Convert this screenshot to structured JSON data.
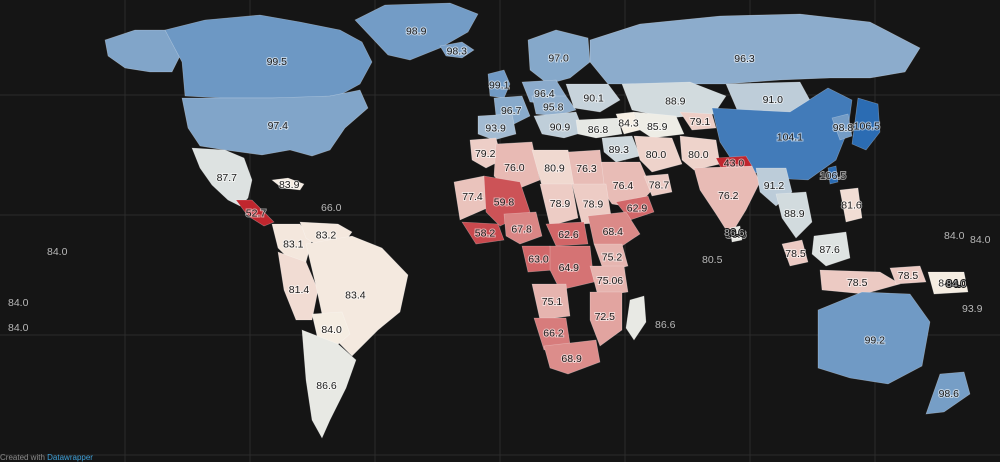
{
  "credit": {
    "prefix": "Created with",
    "link": "Datawrapper"
  },
  "colors": {
    "background": "#151515",
    "scale_low": "#c0262e",
    "scale_mid": "#f7f3e8",
    "scale_high": "#2b6cb3"
  },
  "chart_data": {
    "type": "choropleth",
    "title": "",
    "scale": {
      "min": 52.7,
      "max": 106.5
    },
    "regions": [
      {
        "id": "greenland",
        "value": 98.9,
        "label": "98.9"
      },
      {
        "id": "canada",
        "value": 99.5,
        "label": "99.5"
      },
      {
        "id": "usa",
        "value": 97.4,
        "label": "97.4"
      },
      {
        "id": "alaska",
        "value": 97.4,
        "label": ""
      },
      {
        "id": "mexico",
        "value": 87.7,
        "label": "87.7"
      },
      {
        "id": "central-america",
        "value": 52.7,
        "label": "52.7"
      },
      {
        "id": "cuba",
        "value": 83.9,
        "label": "83.9"
      },
      {
        "id": "colombia",
        "value": 83.1,
        "label": "83.1"
      },
      {
        "id": "venezuela",
        "value": 83.2,
        "label": "83.2"
      },
      {
        "id": "peru",
        "value": 81.4,
        "label": "81.4"
      },
      {
        "id": "brazil",
        "value": 83.4,
        "label": "83.4"
      },
      {
        "id": "bolivia",
        "value": 84.0,
        "label": "84.0"
      },
      {
        "id": "argentina",
        "value": 86.6,
        "label": "86.6"
      },
      {
        "id": "iceland",
        "value": 98.3,
        "label": "98.3"
      },
      {
        "id": "uk",
        "value": 99.1,
        "label": "99.1"
      },
      {
        "id": "scandinavia",
        "value": 97.0,
        "label": "97.0"
      },
      {
        "id": "france",
        "value": 96.7,
        "label": "96.7"
      },
      {
        "id": "germany",
        "value": 96.4,
        "label": "96.4"
      },
      {
        "id": "poland",
        "value": 95.8,
        "label": "95.8"
      },
      {
        "id": "ukraine",
        "value": 90.1,
        "label": "90.1"
      },
      {
        "id": "spain",
        "value": 93.9,
        "label": "93.9"
      },
      {
        "id": "balkans",
        "value": 90.9,
        "label": "90.9"
      },
      {
        "id": "turkey",
        "value": 86.8,
        "label": "86.8"
      },
      {
        "id": "russia",
        "value": 96.3,
        "label": "96.3"
      },
      {
        "id": "kazakhstan",
        "value": 88.9,
        "label": "88.9"
      },
      {
        "id": "mongolia",
        "value": 91.0,
        "label": "91.0"
      },
      {
        "id": "central-asia",
        "value": 85.9,
        "label": "85.9"
      },
      {
        "id": "caucasus",
        "value": 84.3,
        "label": "84.3"
      },
      {
        "id": "china",
        "value": 104.1,
        "label": "104.1"
      },
      {
        "id": "korea",
        "value": 98.8,
        "label": "98.8"
      },
      {
        "id": "japan",
        "value": 106.5,
        "label": "106.5"
      },
      {
        "id": "taiwan",
        "value": 106.5,
        "label": "106.5"
      },
      {
        "id": "kyrgyz",
        "value": 79.1,
        "label": "79.1"
      },
      {
        "id": "iraq",
        "value": 89.3,
        "label": "89.3"
      },
      {
        "id": "iran",
        "value": 80.0,
        "label": "80.0"
      },
      {
        "id": "afghanistan",
        "value": 80.0,
        "label": "80.0"
      },
      {
        "id": "nepal",
        "value": 43.0,
        "label": "43.0"
      },
      {
        "id": "india",
        "value": 76.2,
        "label": "76.2"
      },
      {
        "id": "saudi-arabia",
        "value": 76.4,
        "label": "76.4"
      },
      {
        "id": "oman",
        "value": 78.7,
        "label": "78.7"
      },
      {
        "id": "yemen",
        "value": 62.9,
        "label": "62.9"
      },
      {
        "id": "myanmar",
        "value": 91.2,
        "label": "91.2"
      },
      {
        "id": "thailand",
        "value": 88.9,
        "label": "88.9"
      },
      {
        "id": "philippines",
        "value": 81.6,
        "label": "81.6"
      },
      {
        "id": "sri-lanka",
        "value": 86.6,
        "label": "86.6"
      },
      {
        "id": "malaysia",
        "value": 78.5,
        "label": "78.5"
      },
      {
        "id": "borneo",
        "value": 87.6,
        "label": "87.6"
      },
      {
        "id": "indonesia",
        "value": 78.5,
        "label": "78.5"
      },
      {
        "id": "timor",
        "value": 78.5,
        "label": "78.5"
      },
      {
        "id": "png",
        "value": 84.0,
        "label": "84.0"
      },
      {
        "id": "australia",
        "value": 99.2,
        "label": "99.2"
      },
      {
        "id": "new-zealand",
        "value": 98.6,
        "label": "98.6"
      },
      {
        "id": "morocco",
        "value": 79.2,
        "label": "79.2"
      },
      {
        "id": "algeria",
        "value": 76.0,
        "label": "76.0"
      },
      {
        "id": "libya",
        "value": 80.9,
        "label": "80.9"
      },
      {
        "id": "egypt",
        "value": 76.3,
        "label": "76.3"
      },
      {
        "id": "mauritania",
        "value": 77.4,
        "label": "77.4"
      },
      {
        "id": "mali",
        "value": 59.8,
        "label": "59.8"
      },
      {
        "id": "guinea",
        "value": 58.2,
        "label": "58.2"
      },
      {
        "id": "nigeria",
        "value": 67.8,
        "label": "67.8"
      },
      {
        "id": "chad",
        "value": 78.9,
        "label": "78.9"
      },
      {
        "id": "sudan",
        "value": 78.9,
        "label": "78.9"
      },
      {
        "id": "cent-african-rep",
        "value": 62.6,
        "label": "62.6"
      },
      {
        "id": "ethiopia",
        "value": 68.4,
        "label": "68.4"
      },
      {
        "id": "gabon",
        "value": 63.0,
        "label": "63.0"
      },
      {
        "id": "drc",
        "value": 64.9,
        "label": "64.9"
      },
      {
        "id": "kenya",
        "value": 75.2,
        "label": "75.2"
      },
      {
        "id": "tanzania",
        "value": 75.06,
        "label": "75.06"
      },
      {
        "id": "angola",
        "value": 75.1,
        "label": "75.1"
      },
      {
        "id": "mozambique",
        "value": 72.5,
        "label": "72.5"
      },
      {
        "id": "namibia",
        "value": 66.2,
        "label": "66.2"
      },
      {
        "id": "south-africa",
        "value": 68.9,
        "label": "68.9"
      },
      {
        "id": "madagascar",
        "value": 86.6,
        "label": ""
      }
    ],
    "outside_labels": [
      "66.0",
      "84.0",
      "84.0",
      "84.0",
      "86.6",
      "80.5",
      "86.6",
      "84.0",
      "84.0",
      "84.0",
      "93.9"
    ]
  }
}
